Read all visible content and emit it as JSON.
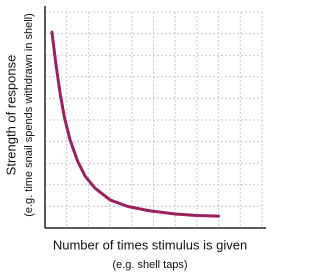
{
  "chart_data": {
    "type": "line",
    "x_label": [
      "Number of times stimulus is given",
      "(e.g. shell taps)"
    ],
    "y_label": [
      "Strength of response",
      "(e.g. time snail spends withdrawn in shell)"
    ],
    "x": [
      0.32,
      0.5,
      0.7,
      0.9,
      1.15,
      1.5,
      1.85,
      2.3,
      3,
      3.8,
      4.8,
      6,
      7,
      8
    ],
    "series": [
      {
        "color": "#9c1f5f",
        "values": [
          9.07,
          7.6,
          6.2,
          5.1,
          4.1,
          3.1,
          2.4,
          1.85,
          1.3,
          1.0,
          0.8,
          0.65,
          0.58,
          0.55
        ]
      }
    ],
    "xlim": [
      0,
      10
    ],
    "ylim": [
      0,
      10
    ],
    "grid": true
  }
}
